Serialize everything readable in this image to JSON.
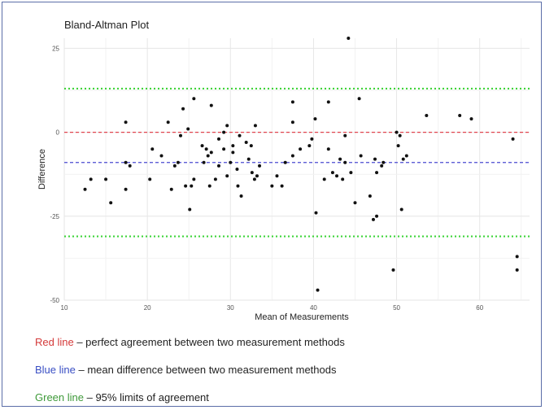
{
  "chart_data": {
    "type": "scatter",
    "title": "Bland-Altman Plot",
    "xlabel": "Mean of Measurements",
    "ylabel": "Difference",
    "xlim": [
      10,
      66
    ],
    "ylim": [
      -50,
      28
    ],
    "x_ticks": [
      10,
      20,
      30,
      40,
      50,
      60
    ],
    "y_ticks": [
      -50,
      -25,
      0,
      25
    ],
    "grid": true,
    "reference_lines": [
      {
        "value": 0,
        "color": "#e0454f",
        "style": "dashed"
      },
      {
        "value": -9,
        "color": "#4a4ad0",
        "style": "dashed"
      },
      {
        "value": 13,
        "color": "#3fd43a",
        "style": "dotted"
      },
      {
        "value": -31,
        "color": "#3fd43a",
        "style": "dotted"
      }
    ],
    "points": [
      [
        12.5,
        -17
      ],
      [
        13.2,
        -14
      ],
      [
        15.0,
        -14
      ],
      [
        15.6,
        -21
      ],
      [
        17.4,
        3
      ],
      [
        17.4,
        -9
      ],
      [
        17.4,
        -17
      ],
      [
        17.9,
        -10
      ],
      [
        20.3,
        -14
      ],
      [
        20.6,
        -5
      ],
      [
        21.7,
        -7
      ],
      [
        22.5,
        3
      ],
      [
        22.9,
        -17
      ],
      [
        23.3,
        -10
      ],
      [
        23.7,
        -9
      ],
      [
        24.0,
        -1
      ],
      [
        24.3,
        7
      ],
      [
        24.6,
        -16
      ],
      [
        24.9,
        1
      ],
      [
        25.1,
        -23
      ],
      [
        25.3,
        -16
      ],
      [
        25.6,
        -14
      ],
      [
        25.6,
        10
      ],
      [
        26.6,
        -4
      ],
      [
        26.8,
        -9
      ],
      [
        27.1,
        -5
      ],
      [
        27.3,
        -7
      ],
      [
        27.5,
        -16
      ],
      [
        27.7,
        8
      ],
      [
        27.7,
        -6
      ],
      [
        28.2,
        -14
      ],
      [
        28.6,
        -10
      ],
      [
        28.6,
        -2
      ],
      [
        29.2,
        0
      ],
      [
        29.2,
        -5
      ],
      [
        29.6,
        2
      ],
      [
        29.6,
        -13
      ],
      [
        30.0,
        -9
      ],
      [
        30.3,
        -4
      ],
      [
        30.3,
        -6
      ],
      [
        30.8,
        -11
      ],
      [
        30.9,
        -16
      ],
      [
        31.1,
        -1
      ],
      [
        31.3,
        -19
      ],
      [
        31.9,
        -3
      ],
      [
        32.2,
        -8
      ],
      [
        32.5,
        -4
      ],
      [
        32.6,
        -12
      ],
      [
        32.9,
        -14
      ],
      [
        33.0,
        2
      ],
      [
        33.2,
        -13
      ],
      [
        33.5,
        -10
      ],
      [
        35.0,
        -16
      ],
      [
        35.6,
        -13
      ],
      [
        36.2,
        -16
      ],
      [
        36.6,
        -9
      ],
      [
        37.5,
        3
      ],
      [
        37.5,
        9
      ],
      [
        37.5,
        -7
      ],
      [
        38.4,
        -5
      ],
      [
        39.5,
        -4
      ],
      [
        39.8,
        -2
      ],
      [
        40.2,
        4
      ],
      [
        40.3,
        -24
      ],
      [
        40.5,
        -47
      ],
      [
        41.3,
        -14
      ],
      [
        41.8,
        9
      ],
      [
        41.8,
        -5
      ],
      [
        42.3,
        -12
      ],
      [
        42.8,
        -13
      ],
      [
        43.2,
        -8
      ],
      [
        43.5,
        -14
      ],
      [
        43.8,
        -1
      ],
      [
        43.8,
        -9
      ],
      [
        44.2,
        28
      ],
      [
        44.5,
        -12
      ],
      [
        45.0,
        -21
      ],
      [
        45.5,
        10
      ],
      [
        45.7,
        -7
      ],
      [
        46.8,
        -19
      ],
      [
        47.2,
        -26
      ],
      [
        47.4,
        -8
      ],
      [
        47.6,
        -25
      ],
      [
        47.6,
        -12
      ],
      [
        48.2,
        -10
      ],
      [
        48.4,
        -9
      ],
      [
        49.6,
        -41
      ],
      [
        50.0,
        0
      ],
      [
        50.2,
        -4
      ],
      [
        50.4,
        -1
      ],
      [
        50.6,
        -23
      ],
      [
        50.8,
        -8
      ],
      [
        51.2,
        -7
      ],
      [
        53.6,
        5
      ],
      [
        57.6,
        5
      ],
      [
        59.0,
        4
      ],
      [
        64.0,
        -2
      ],
      [
        64.5,
        -37
      ],
      [
        64.5,
        -41
      ]
    ]
  },
  "legend": {
    "red_key": "Red line",
    "red_text": " – perfect agreement between two measurement methods",
    "blue_key": "Blue line",
    "blue_text": " – mean difference between two measurement methods",
    "green_key": "Green line",
    "green_text": " – 95% limits of agreement"
  }
}
